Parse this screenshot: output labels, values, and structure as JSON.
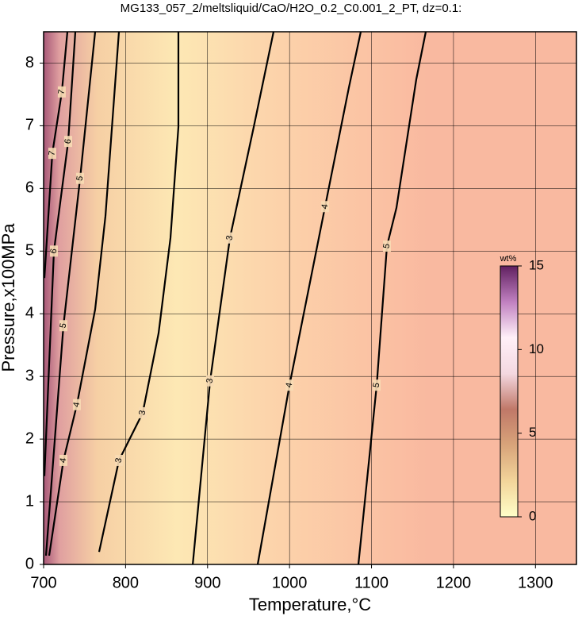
{
  "chart_data": {
    "type": "contour",
    "title": "MG133_057_2/meltsliquid/CaO/H2O_0.2_C0.001_2_PT, dz=0.1:",
    "x_label": "Temperature,°C",
    "y_label": "Pressure,x100MPa",
    "xlim": [
      700,
      1350
    ],
    "ylim": [
      0,
      8.5
    ],
    "xticks": [
      700,
      800,
      900,
      1000,
      1100,
      1200,
      1300
    ],
    "yticks": [
      0,
      1,
      2,
      3,
      4,
      5,
      6,
      7,
      8
    ],
    "grid": true,
    "colorbar": {
      "label": "wt%",
      "lim": [
        0,
        15
      ],
      "ticks": [
        0,
        5,
        10,
        15
      ],
      "colormap": [
        "#ffffc8",
        "#f2d49a",
        "#d8a47a",
        "#c07868",
        "#f4d8e0",
        "#fff0f8",
        "#c080c0",
        "#602060"
      ]
    },
    "contours": [
      {
        "level": 7,
        "x": [
          701,
          710.6,
          722.2,
          729
        ],
        "y": [
          4.57,
          6.56,
          7.54,
          8.5
        ]
      },
      {
        "level": 6,
        "x": [
          701,
          712.6,
          730,
          738.7
        ],
        "y": [
          1.41,
          5.0,
          6.75,
          8.5
        ]
      },
      {
        "level": 5,
        "x": [
          702.9,
          724.2,
          744.5,
          762.9
        ],
        "y": [
          0.14,
          3.81,
          6.16,
          8.5
        ]
      },
      {
        "level": 4,
        "x": [
          706.8,
          724.2,
          740.6,
          762.9,
          775.4,
          791.9
        ],
        "y": [
          0.14,
          1.66,
          2.55,
          4.07,
          5.56,
          8.5
        ]
      },
      {
        "level": 3,
        "x": [
          767.7,
          791.9,
          820.9,
          840.3,
          854.8,
          864.4,
          864.4
        ],
        "y": [
          0.2,
          1.66,
          2.42,
          3.69,
          5.21,
          6.98,
          8.5
        ]
      },
      {
        "level": 3,
        "x": [
          881.9,
          903.1,
          927.3,
          956.3,
          980.5
        ],
        "y": [
          0,
          2.93,
          5.21,
          6.98,
          8.5
        ]
      },
      {
        "level": 4,
        "x": [
          961.2,
          999.9,
          1043.4,
          1072.4,
          1086.9
        ],
        "y": [
          0,
          2.86,
          5.71,
          7.61,
          8.5
        ]
      },
      {
        "level": 5,
        "x": [
          1084.0,
          1106.3,
          1118.8,
          1130.4,
          1154.6,
          1166.2
        ],
        "y": [
          0,
          2.86,
          5.08,
          5.69,
          7.74,
          8.5
        ]
      }
    ]
  }
}
